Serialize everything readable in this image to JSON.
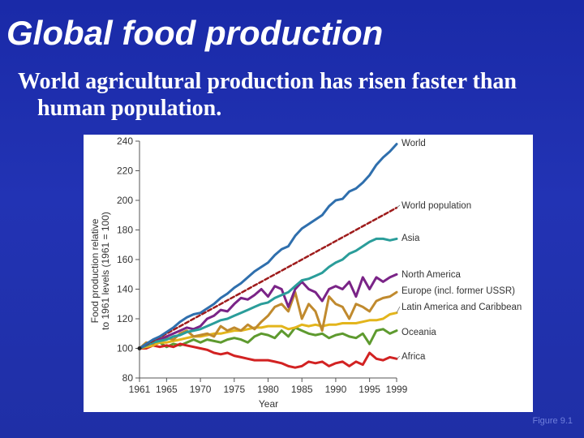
{
  "slide": {
    "title": "Global food production",
    "subtitle": "World agricultural production has risen faster than human population.",
    "figure_caption": "Figure 9.1",
    "background_color": "#1f2fa6"
  },
  "chart_data": {
    "type": "line",
    "ylabel_line1": "Food production relative",
    "ylabel_line2": "to 1961 levels (1961 = 100)",
    "xlabel": "Year",
    "xlim": [
      1961,
      1999
    ],
    "ylim": [
      80,
      240
    ],
    "x_ticks": [
      1961,
      1965,
      1970,
      1975,
      1980,
      1985,
      1990,
      1995,
      1999
    ],
    "y_ticks": [
      80,
      100,
      120,
      140,
      160,
      180,
      200,
      220,
      240
    ],
    "grid": false,
    "legend": "labels at line ends (right)",
    "x": [
      1961,
      1962,
      1963,
      1964,
      1965,
      1966,
      1967,
      1968,
      1969,
      1970,
      1971,
      1972,
      1973,
      1974,
      1975,
      1976,
      1977,
      1978,
      1979,
      1980,
      1981,
      1982,
      1983,
      1984,
      1985,
      1986,
      1987,
      1988,
      1989,
      1990,
      1991,
      1992,
      1993,
      1994,
      1995,
      1996,
      1997,
      1998,
      1999
    ],
    "series": [
      {
        "name": "World",
        "color": "#2f6fad",
        "dashed": false,
        "values": [
          100,
          103,
          106,
          108,
          111,
          114,
          118,
          121,
          123,
          124,
          127,
          130,
          134,
          137,
          141,
          144,
          148,
          152,
          155,
          158,
          163,
          167,
          169,
          176,
          181,
          184,
          187,
          190,
          196,
          200,
          201,
          206,
          208,
          212,
          217,
          224,
          229,
          233,
          238
        ]
      },
      {
        "name": "World population",
        "color": "#9e1b1b",
        "dashed": true,
        "values": [
          100,
          102.5,
          105,
          107.5,
          110,
          112.5,
          115,
          117.5,
          120,
          122.5,
          125,
          127.5,
          130,
          132.5,
          135,
          137.5,
          140,
          142.5,
          145,
          147.5,
          150,
          152.5,
          155,
          157.5,
          160,
          162.5,
          165,
          167.5,
          170,
          172.5,
          175,
          177.5,
          180,
          182.5,
          185,
          187.5,
          190,
          192.5,
          195
        ]
      },
      {
        "name": "Asia",
        "color": "#2a9d9a",
        "dashed": false,
        "values": [
          100,
          102,
          104,
          105,
          106,
          108,
          109,
          111,
          112,
          113,
          115,
          117,
          119,
          120,
          122,
          124,
          126,
          128,
          130,
          131,
          134,
          136,
          138,
          142,
          146,
          147,
          149,
          151,
          155,
          158,
          160,
          164,
          166,
          169,
          172,
          174,
          174,
          173,
          174
        ]
      },
      {
        "name": "North America",
        "color": "#7a2487",
        "dashed": false,
        "values": [
          100,
          102,
          104,
          106,
          108,
          110,
          112,
          114,
          113,
          115,
          120,
          122,
          126,
          125,
          130,
          134,
          133,
          136,
          140,
          135,
          142,
          140,
          128,
          140,
          145,
          140,
          138,
          132,
          140,
          142,
          140,
          145,
          135,
          148,
          140,
          148,
          145,
          148,
          150
        ]
      },
      {
        "name": "Europe (incl. former USSR)",
        "color": "#c08a2e",
        "dashed": false,
        "values": [
          100,
          104,
          103,
          108,
          107,
          106,
          110,
          112,
          108,
          109,
          110,
          108,
          115,
          112,
          114,
          112,
          116,
          113,
          118,
          122,
          128,
          130,
          125,
          138,
          120,
          130,
          125,
          112,
          135,
          130,
          128,
          120,
          130,
          128,
          125,
          132,
          134,
          135,
          138
        ]
      },
      {
        "name": "Latin America and Caribbean",
        "color": "#e3b51c",
        "dashed": false,
        "values": [
          100,
          101,
          102,
          104,
          104,
          105,
          106,
          107,
          108,
          108,
          109,
          110,
          110,
          111,
          112,
          112,
          113,
          114,
          114,
          115,
          115,
          115,
          113,
          114,
          116,
          115,
          116,
          115,
          116,
          116,
          117,
          117,
          117,
          118,
          119,
          119,
          120,
          123,
          124
        ]
      },
      {
        "name": "Oceania",
        "color": "#5e9a2f",
        "dashed": false,
        "values": [
          100,
          102,
          103,
          104,
          101,
          103,
          102,
          104,
          106,
          104,
          106,
          105,
          104,
          106,
          107,
          106,
          104,
          108,
          110,
          109,
          107,
          112,
          108,
          114,
          112,
          110,
          109,
          110,
          107,
          109,
          110,
          108,
          107,
          110,
          103,
          112,
          113,
          110,
          112
        ]
      },
      {
        "name": "Africa",
        "color": "#d22222",
        "dashed": false,
        "values": [
          100,
          100,
          102,
          101,
          102,
          101,
          103,
          102,
          101,
          100,
          99,
          97,
          96,
          97,
          95,
          94,
          93,
          92,
          92,
          92,
          91,
          90,
          88,
          87,
          88,
          91,
          90,
          91,
          88,
          90,
          91,
          88,
          91,
          89,
          97,
          93,
          92,
          94,
          93
        ]
      }
    ]
  }
}
